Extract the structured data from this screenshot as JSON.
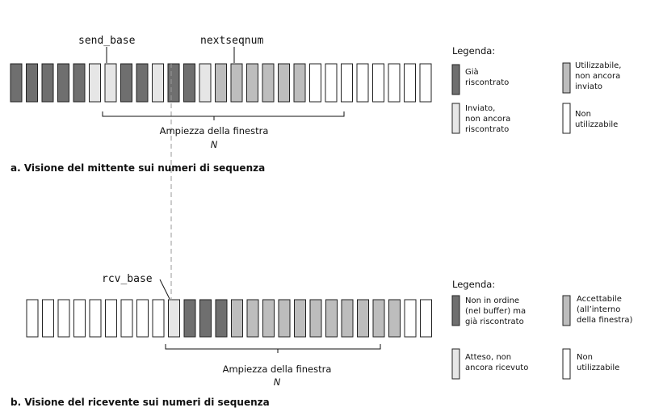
{
  "colors": {
    "acked": "#6f6f6f",
    "usable": "#bdbdbd",
    "sent_not_acked": "#e6e6e6",
    "not_usable": "#ffffff",
    "border": "#222222",
    "dashed": "#9a9a9a"
  },
  "sender": {
    "send_base_label": "send_base",
    "nextseqnum_label": "nextseqnum",
    "sequence": [
      "acked",
      "acked",
      "acked",
      "acked",
      "acked",
      "sent",
      "sent",
      "acked",
      "acked",
      "sent",
      "acked",
      "acked",
      "sent",
      "usable",
      "usable",
      "usable",
      "usable",
      "usable",
      "usable",
      "empty",
      "empty",
      "empty",
      "empty",
      "empty",
      "empty",
      "empty",
      "empty"
    ],
    "window_label": "Ampiezza della finestra",
    "window_var": "N",
    "caption": "a. Visione del mittente sui numeri di sequenza",
    "legend_title": "Legenda:",
    "legend": [
      {
        "key": "acked",
        "lines": [
          "Già",
          "riscontrato"
        ]
      },
      {
        "key": "usable",
        "lines": [
          "Utilizzabile,",
          "non ancora",
          "inviato"
        ]
      },
      {
        "key": "sent_not_acked",
        "lines": [
          "Inviato,",
          "non ancora",
          "riscontrato"
        ]
      },
      {
        "key": "not_usable",
        "lines": [
          "Non",
          "utilizzabile"
        ]
      }
    ]
  },
  "receiver": {
    "rcv_base_label": "rcv_base",
    "sequence": [
      "empty",
      "empty",
      "empty",
      "empty",
      "empty",
      "empty",
      "empty",
      "empty",
      "empty",
      "expected",
      "acked",
      "acked",
      "acked",
      "usable",
      "usable",
      "usable",
      "usable",
      "usable",
      "usable",
      "usable",
      "usable",
      "usable",
      "usable",
      "usable",
      "empty",
      "empty"
    ],
    "window_label": "Ampiezza della finestra",
    "window_var": "N",
    "caption": "b. Visione del ricevente sui numeri di sequenza",
    "legend_title": "Legenda:",
    "legend": [
      {
        "key": "acked",
        "lines": [
          "Non in ordine",
          "(nel buffer) ma",
          "già riscontrato"
        ]
      },
      {
        "key": "usable",
        "lines": [
          "Accettabile",
          "(all’interno",
          "della finestra)"
        ]
      },
      {
        "key": "sent_not_acked",
        "lines": [
          "Atteso, non",
          "ancora ricevuto"
        ]
      },
      {
        "key": "not_usable",
        "lines": [
          "Non",
          "utilizzabile"
        ]
      }
    ]
  }
}
